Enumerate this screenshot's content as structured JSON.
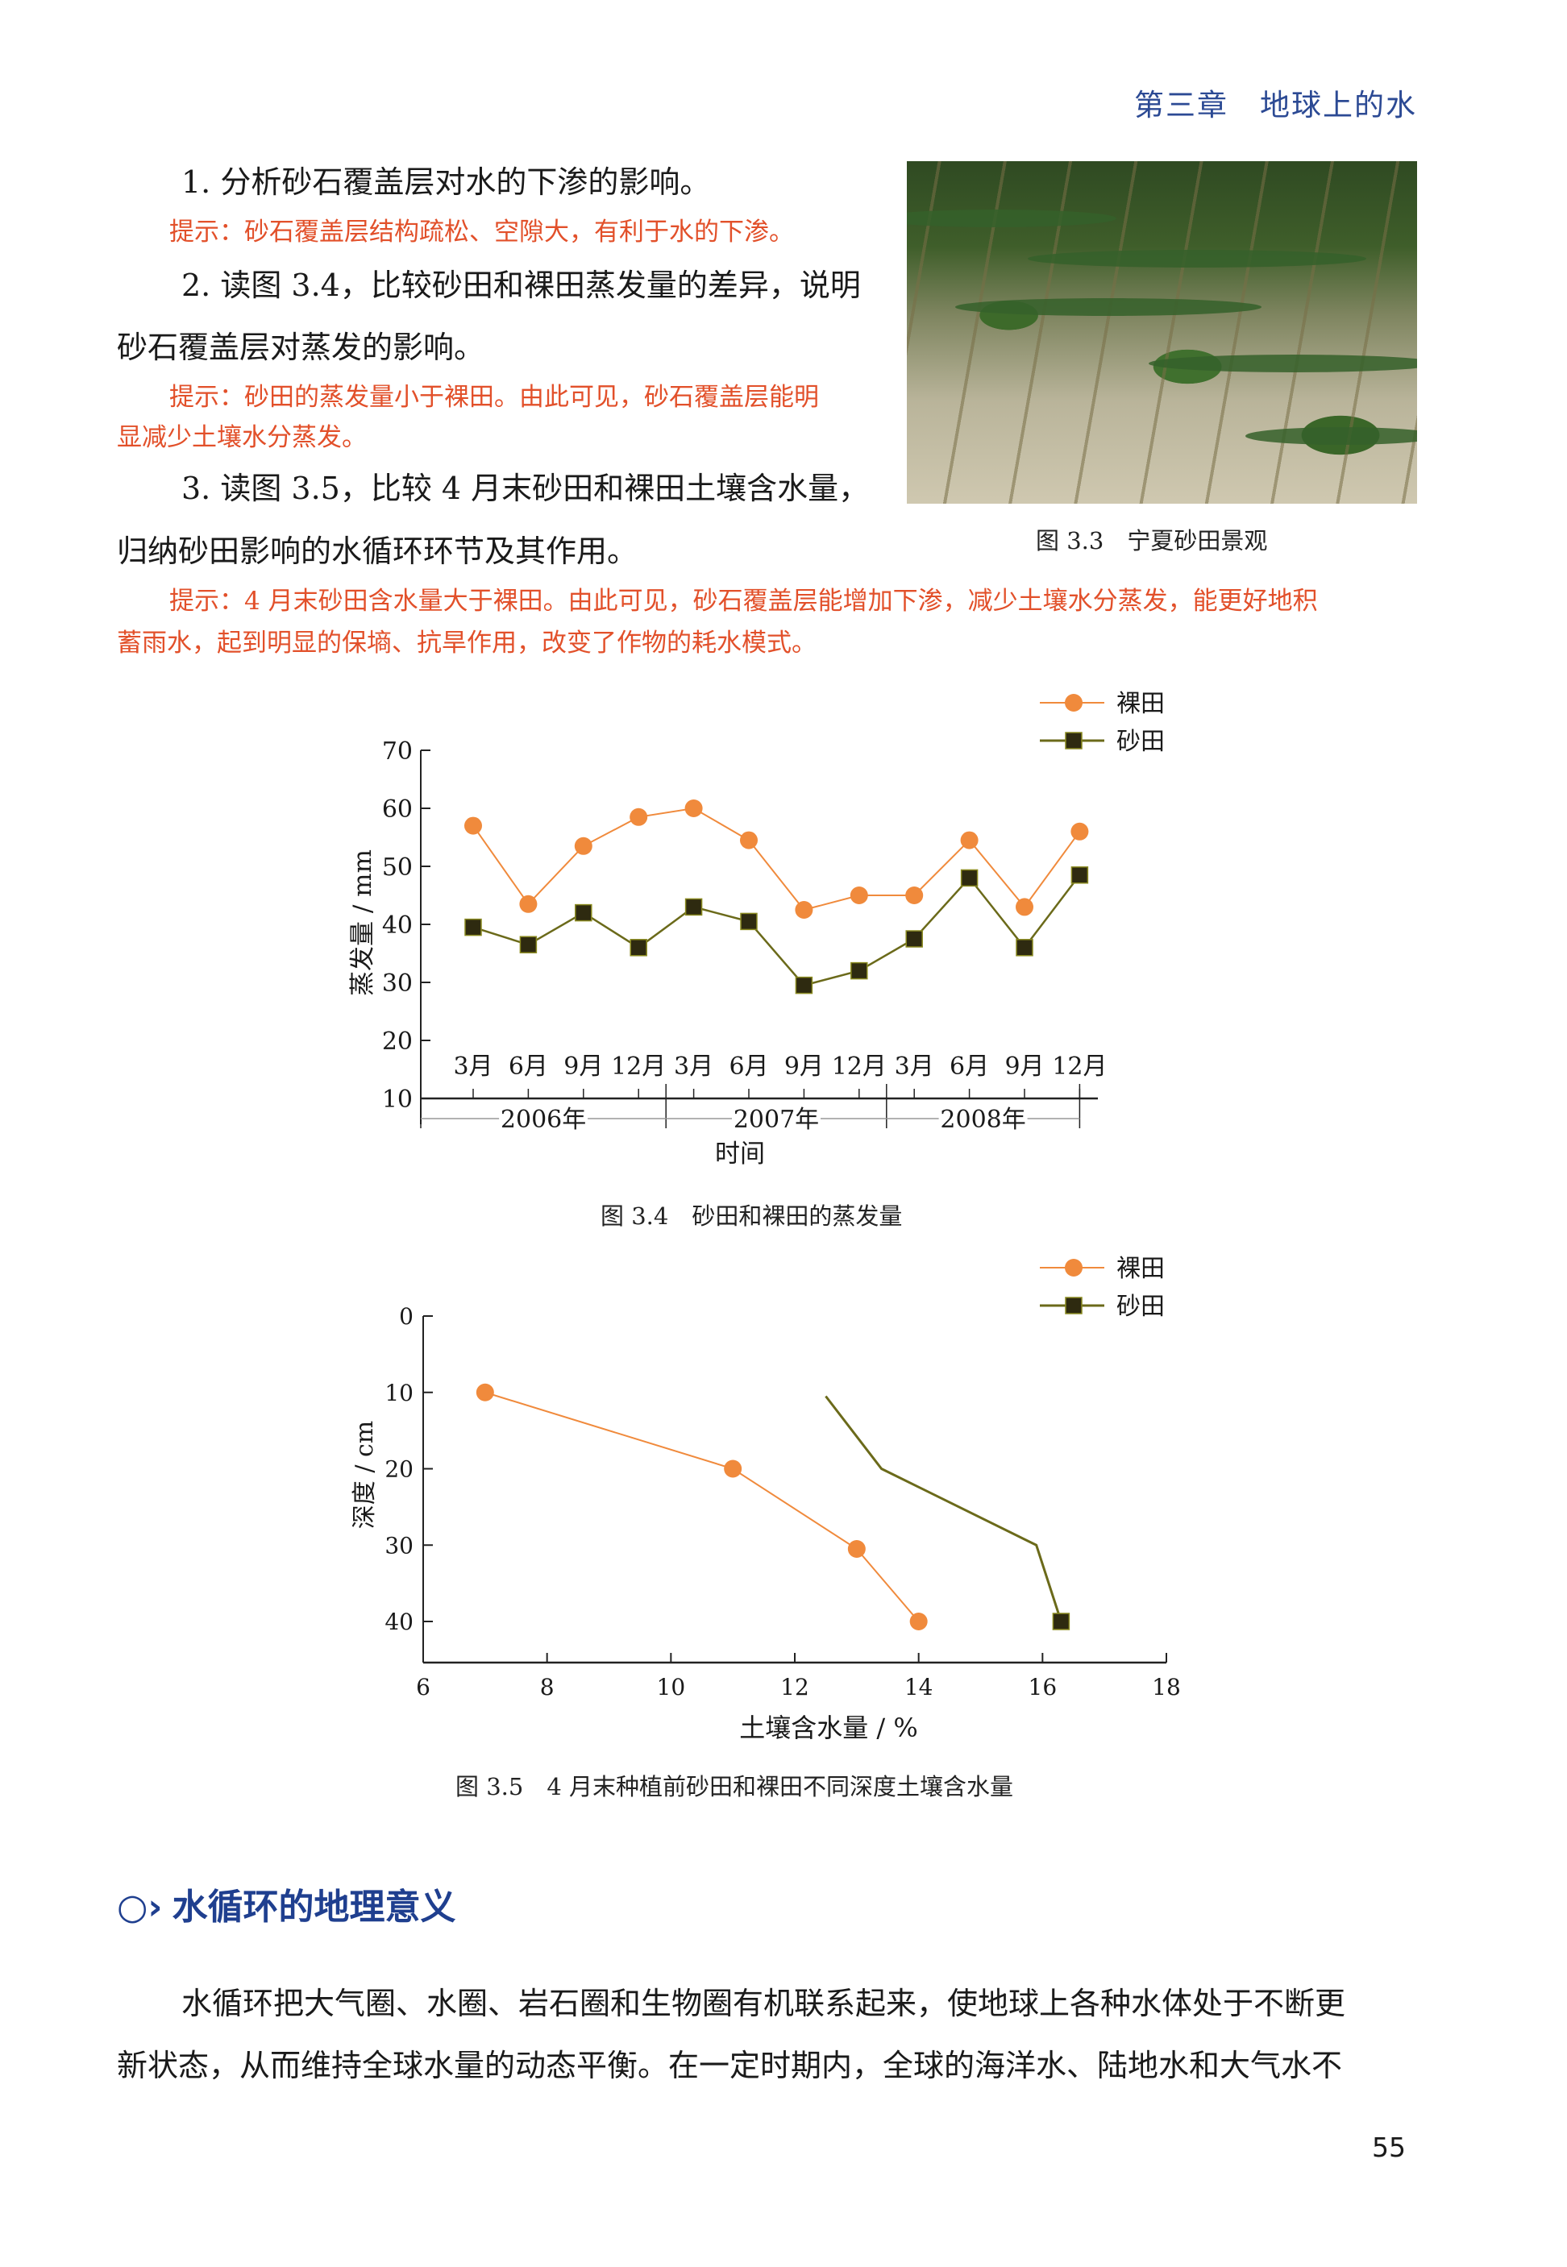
{
  "header": {
    "chapter": "第三章　地球上的水"
  },
  "questions": [
    {
      "line1": "1. 分析砂石覆盖层对水的下渗的影响。",
      "hint": [
        "提示：砂石覆盖层结构疏松、空隙大，有利于水的下渗。"
      ]
    },
    {
      "line1": "2. 读图 3.4，比较砂田和裸田蒸发量的差异，说明",
      "line2": "砂石覆盖层对蒸发的影响。",
      "hint": [
        "提示：砂田的蒸发量小于裸田。由此可见，砂石覆盖层能明",
        "显减少土壤水分蒸发。"
      ]
    },
    {
      "line1": "3. 读图 3.5，比较 4 月末砂田和裸田土壤含水量，",
      "line2": "归纳砂田影响的水循环环节及其作用。",
      "hint": [
        "提示：4 月末砂田含水量大于裸田。由此可见，砂石覆盖层能增加下渗，减少土壤水分蒸发，能更好地积",
        "蓄雨水，起到明显的保墒、抗旱作用，改变了作物的耗水模式。"
      ]
    }
  ],
  "photo": {
    "caption": "图 3.3　宁夏砂田景观"
  },
  "colors": {
    "bare": "#f08a3c",
    "sand": "#2e2a10",
    "sand_line": "#6b6a1a",
    "hint": "#e2502a",
    "heading": "#1f3f8f"
  },
  "chart_data": [
    {
      "type": "line",
      "title": "图 3.4　砂田和裸田的蒸发量",
      "xlabel": "时间",
      "ylabel": "蒸发量 / mm",
      "ylim": [
        10,
        70
      ],
      "yticks": [
        "10",
        "20",
        "30",
        "40",
        "50",
        "60",
        "70"
      ],
      "categories": [
        "3月",
        "6月",
        "9月",
        "12月",
        "3月",
        "6月",
        "9月",
        "12月",
        "3月",
        "6月",
        "9月",
        "12月"
      ],
      "years": [
        "2006年",
        "2007年",
        "2008年"
      ],
      "legend": "top-right",
      "series": [
        {
          "name": "裸田",
          "marker": "circle",
          "values": [
            57,
            43.5,
            53.5,
            58.5,
            60,
            54.5,
            42.5,
            45,
            45,
            54.5,
            43,
            56
          ]
        },
        {
          "name": "砂田",
          "marker": "square",
          "values": [
            39.5,
            36.5,
            42,
            36,
            43,
            40.5,
            29.5,
            32,
            37.5,
            48,
            36,
            48.5
          ]
        }
      ]
    },
    {
      "type": "line",
      "title": "图 3.5　4 月末种植前砂田和裸田不同深度土壤含水量",
      "xlabel": "土壤含水量 / %",
      "ylabel": "深度 / cm",
      "xlim": [
        6,
        18
      ],
      "ylim": [
        0,
        40
      ],
      "xticks": [
        "6",
        "8",
        "10",
        "12",
        "14",
        "16",
        "18"
      ],
      "yticks": [
        "0",
        "10",
        "20",
        "30",
        "40"
      ],
      "legend": "top-right",
      "series": [
        {
          "name": "裸田",
          "marker": "circle",
          "points": [
            [
              7,
              10
            ],
            [
              11,
              20
            ],
            [
              13,
              30.5
            ],
            [
              14,
              40
            ]
          ]
        },
        {
          "name": "砂田",
          "marker": "square",
          "points": [
            [
              12.5,
              10.5
            ],
            [
              13.4,
              20
            ],
            [
              15.9,
              30
            ],
            [
              16.3,
              40
            ]
          ]
        }
      ]
    }
  ],
  "section": {
    "icon": "arrow-circle-icon",
    "title": "水循环的地理意义"
  },
  "paragraph": [
    "水循环把大气圈、水圈、岩石圈和生物圈有机联系起来，使地球上各种水体处于不断更",
    "新状态，从而维持全球水量的动态平衡。在一定时期内，全球的海洋水、陆地水和大气水不"
  ],
  "page_number": "55"
}
